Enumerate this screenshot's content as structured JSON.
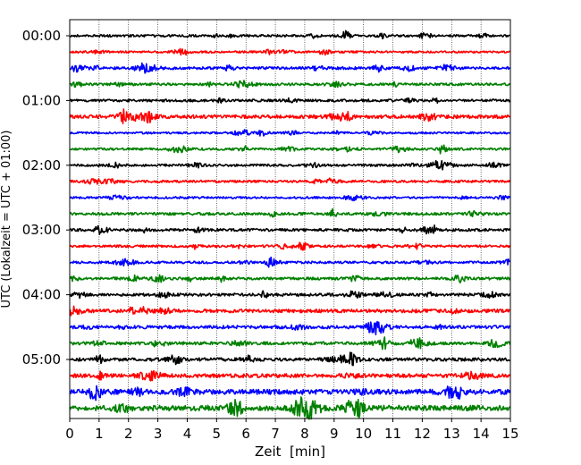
{
  "chart_data": {
    "type": "line",
    "title": "",
    "xlabel": "Zeit  [min]",
    "ylabel": "UTC (Lokalzeit = UTC + 01:00)",
    "xlim": [
      0,
      15
    ],
    "x_ticks": [
      "0",
      "1",
      "2",
      "3",
      "4",
      "5",
      "6",
      "7",
      "8",
      "9",
      "10",
      "11",
      "12",
      "13",
      "14",
      "15"
    ],
    "y_ticks": [
      "00:00",
      "01:00",
      "02:00",
      "03:00",
      "04:00",
      "05:00"
    ],
    "grid": "vertical dotted",
    "trace_minutes": 15,
    "trace_colors": [
      "#000000",
      "#ff0000",
      "#0000ff",
      "#008000"
    ],
    "traces": [
      {
        "start": "00:00",
        "amplitude": 2.5
      },
      {
        "start": "00:15",
        "amplitude": 2.2
      },
      {
        "start": "00:30",
        "amplitude": 3.0
      },
      {
        "start": "00:45",
        "amplitude": 2.8
      },
      {
        "start": "01:00",
        "amplitude": 2.8
      },
      {
        "start": "01:15",
        "amplitude": 3.8
      },
      {
        "start": "01:30",
        "amplitude": 2.2
      },
      {
        "start": "01:45",
        "amplitude": 2.6
      },
      {
        "start": "02:00",
        "amplitude": 2.6
      },
      {
        "start": "02:15",
        "amplitude": 2.6
      },
      {
        "start": "02:30",
        "amplitude": 2.4
      },
      {
        "start": "02:45",
        "amplitude": 3.0
      },
      {
        "start": "03:00",
        "amplitude": 3.0
      },
      {
        "start": "03:15",
        "amplitude": 2.6
      },
      {
        "start": "03:30",
        "amplitude": 2.6
      },
      {
        "start": "03:45",
        "amplitude": 3.0
      },
      {
        "start": "04:00",
        "amplitude": 3.2
      },
      {
        "start": "04:15",
        "amplitude": 3.8
      },
      {
        "start": "04:30",
        "amplitude": 3.6
      },
      {
        "start": "04:45",
        "amplitude": 3.4
      },
      {
        "start": "05:00",
        "amplitude": 3.6
      },
      {
        "start": "05:15",
        "amplitude": 4.2
      },
      {
        "start": "05:30",
        "amplitude": 5.5
      },
      {
        "start": "05:45",
        "amplitude": 6.0
      }
    ]
  }
}
